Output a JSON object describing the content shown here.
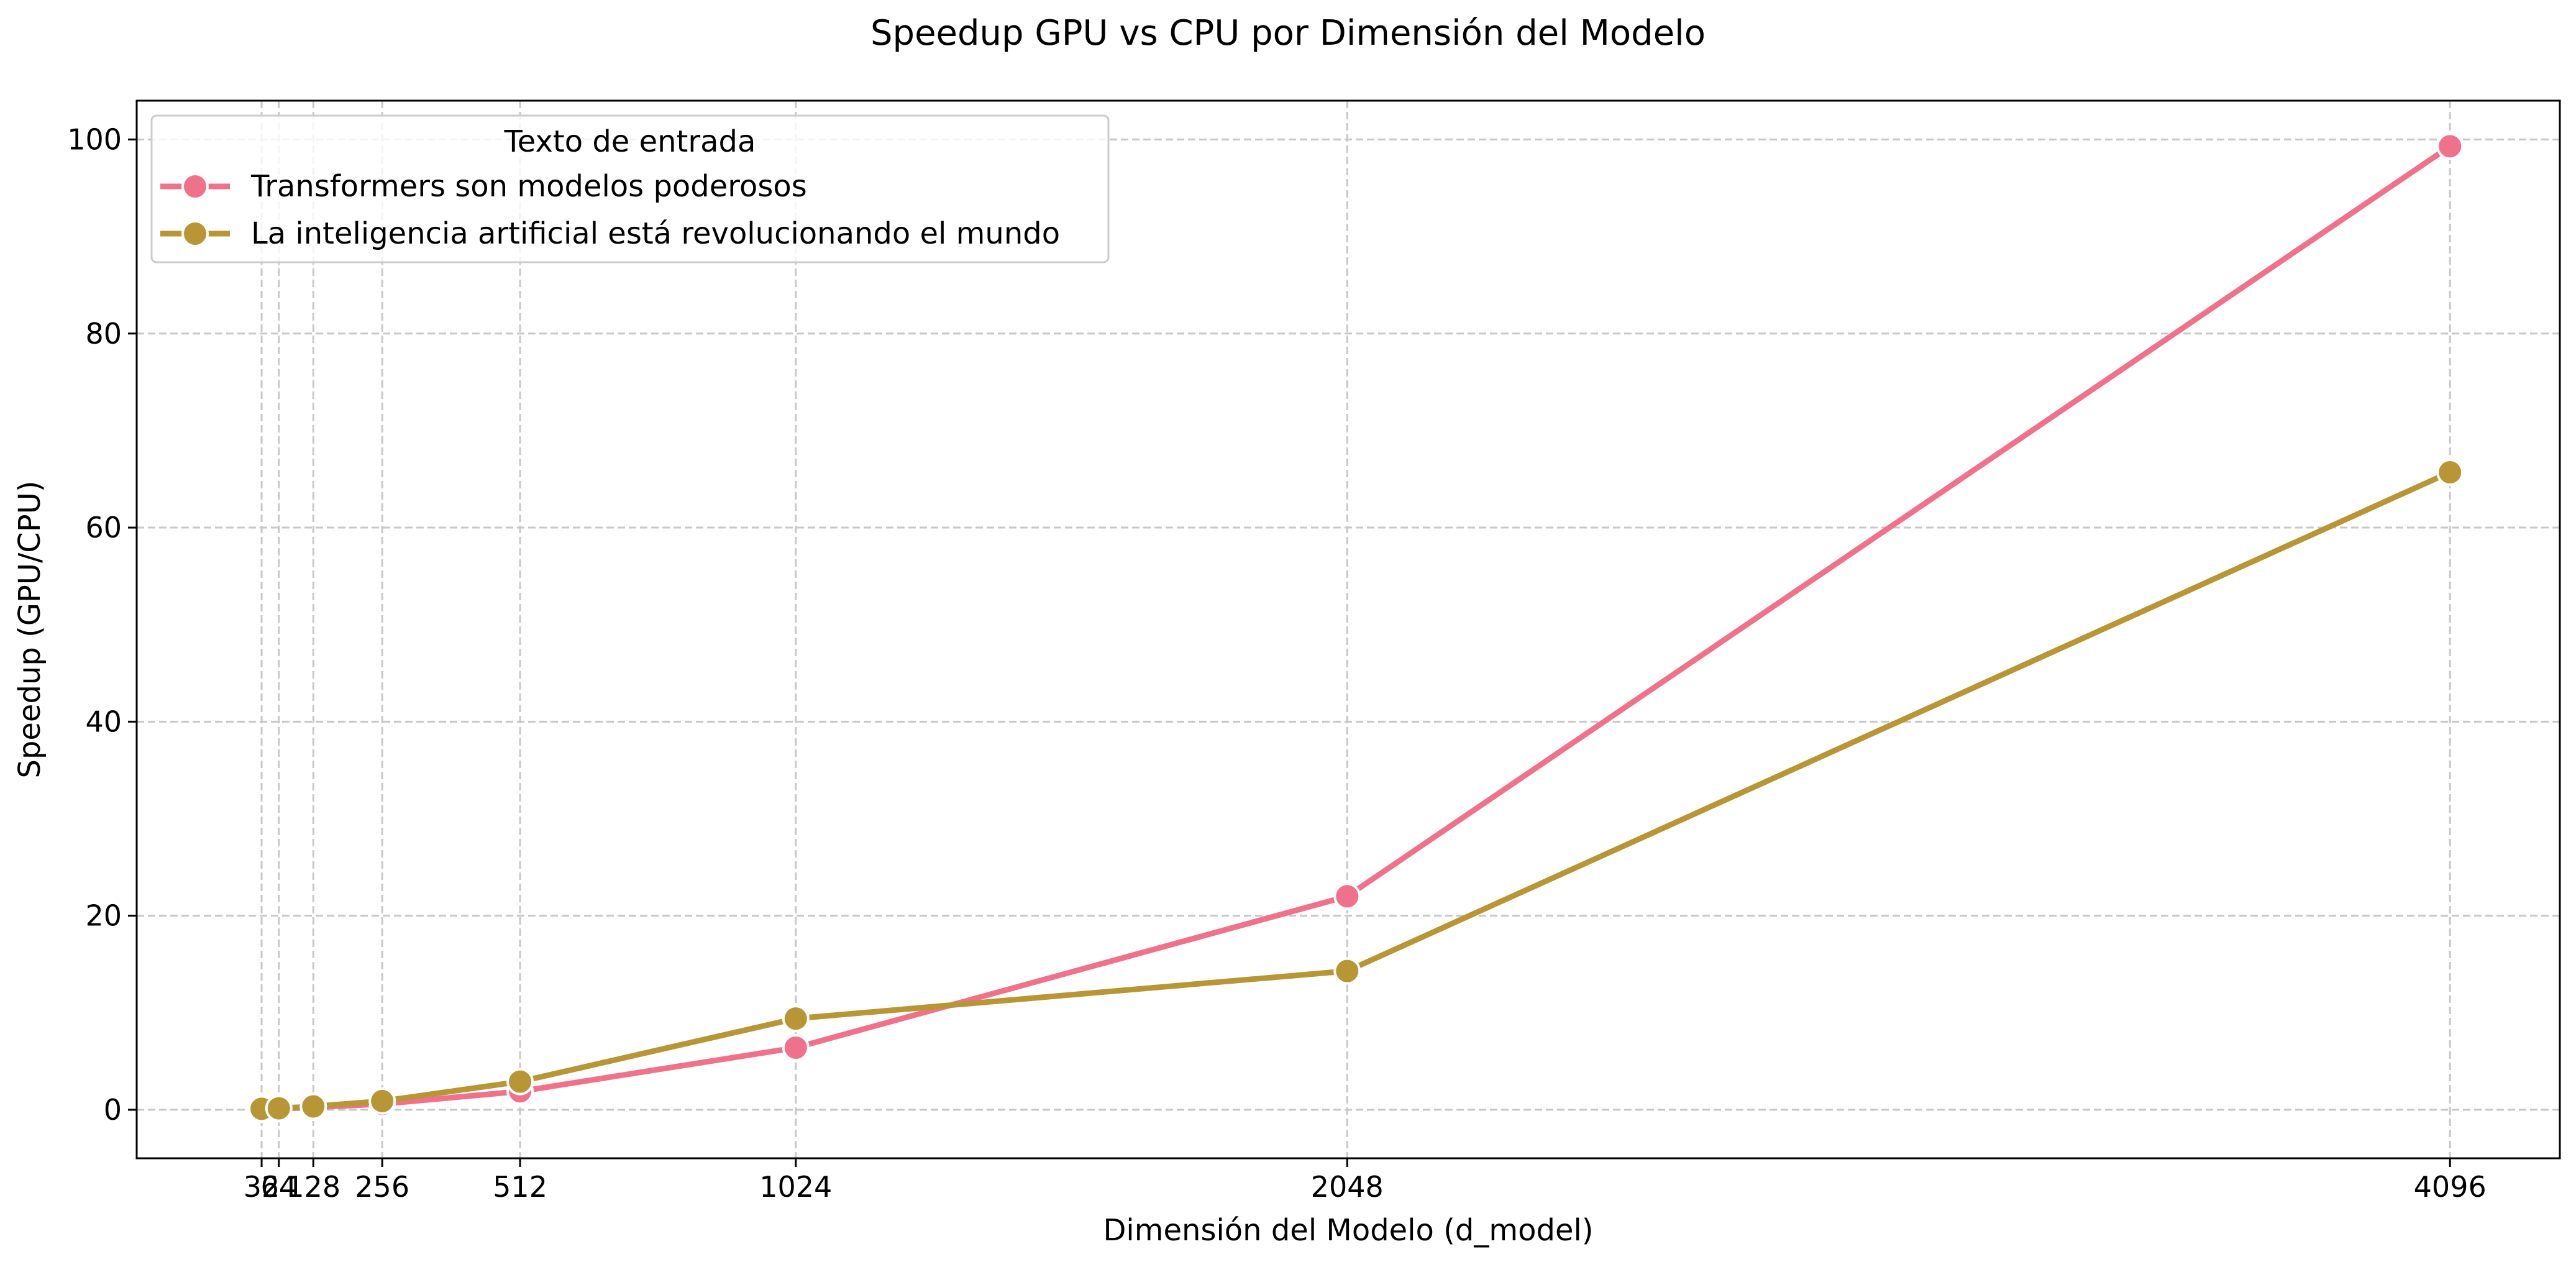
{
  "chart_data": {
    "type": "line",
    "title": "Speedup GPU vs CPU por Dimensión del Modelo",
    "xlabel": "Dimensión del Modelo (d_model)",
    "ylabel": "Speedup (GPU/CPU)",
    "x": [
      32,
      64,
      128,
      256,
      512,
      1024,
      2048,
      4096
    ],
    "x_tick_labels": [
      "32",
      "64",
      "128",
      "256",
      "512",
      "1024",
      "2048",
      "4096"
    ],
    "y_ticks": [
      0,
      20,
      40,
      60,
      80,
      100
    ],
    "y_tick_labels": [
      "0",
      "20",
      "40",
      "60",
      "80",
      "100"
    ],
    "xlim": [
      -200,
      4300
    ],
    "ylim": [
      -5,
      104
    ],
    "grid": true,
    "legend_title": "Texto de entrada",
    "legend_position": "top-left",
    "series": [
      {
        "name": "Transformers son modelos poderosos",
        "color": "#f0718a",
        "marker": "circle",
        "values": [
          0.05,
          0.1,
          0.25,
          0.6,
          1.9,
          6.4,
          22.0,
          99.3
        ]
      },
      {
        "name": "La inteligencia artificial está revolucionando el mundo",
        "color": "#b89535",
        "marker": "circle",
        "values": [
          0.1,
          0.15,
          0.35,
          0.9,
          2.9,
          9.4,
          14.3,
          65.7
        ]
      }
    ]
  }
}
